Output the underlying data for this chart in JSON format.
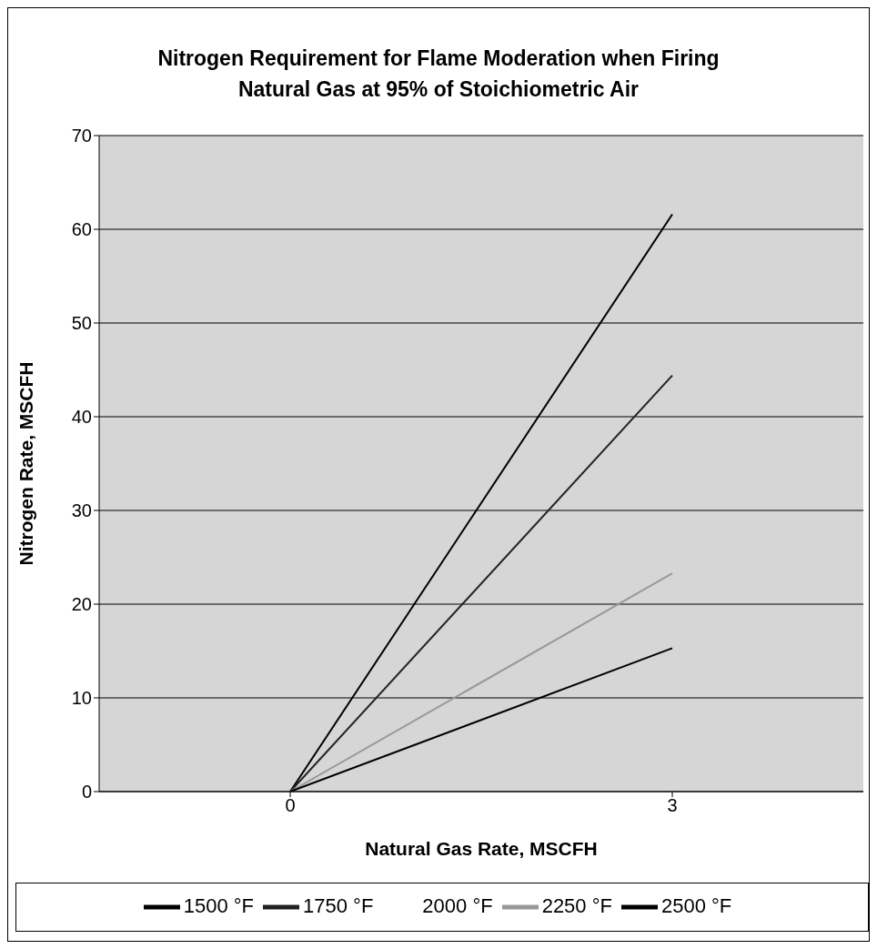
{
  "chart_data": {
    "type": "line",
    "title": "Nitrogen Requirement for Flame Moderation when Firing Natural Gas at 95% of Stoichiometric Air",
    "xlabel": "Natural Gas Rate, MSCFH",
    "ylabel": "Nitrogen Rate, MSCFH",
    "categories": [
      "0",
      "3"
    ],
    "series": [
      {
        "name": "1500 °F",
        "color": "#000000",
        "values": [
          0,
          61.6
        ]
      },
      {
        "name": "1750 °F",
        "color": "#222222",
        "values": [
          0,
          44.4
        ]
      },
      {
        "name": "2000 °F",
        "values": [
          null,
          null
        ]
      },
      {
        "name": "2250 °F",
        "color": "#999999",
        "values": [
          0,
          23.3
        ]
      },
      {
        "name": "2500 °F",
        "color": "#000000",
        "values": [
          0,
          15.3
        ]
      }
    ],
    "ylim": [
      0,
      70
    ],
    "yticks": [
      0,
      10,
      20,
      30,
      40,
      50,
      60,
      70
    ],
    "grid": "y",
    "legend": "bottom",
    "marker": "none",
    "line_style": "solid"
  }
}
